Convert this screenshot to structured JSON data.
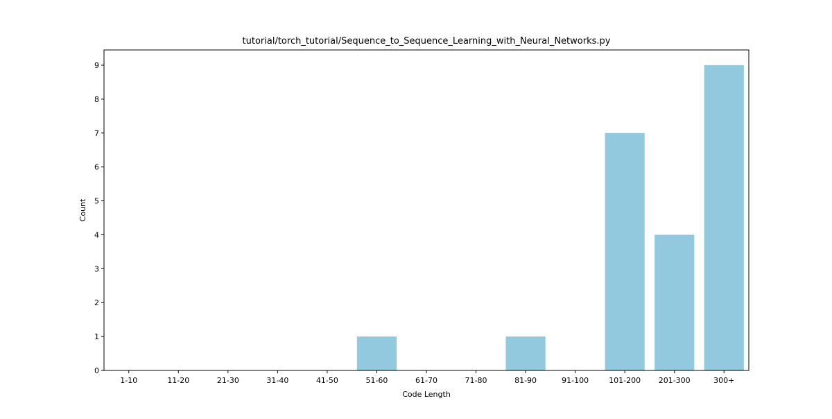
{
  "chart_data": {
    "type": "bar",
    "title": "tutorial/torch_tutorial/Sequence_to_Sequence_Learning_with_Neural_Networks.py",
    "xlabel": "Code Length",
    "ylabel": "Count",
    "categories": [
      "1-10",
      "11-20",
      "21-30",
      "31-40",
      "41-50",
      "51-60",
      "61-70",
      "71-80",
      "81-90",
      "91-100",
      "101-200",
      "201-300",
      "300+"
    ],
    "values": [
      0,
      0,
      0,
      0,
      0,
      1,
      0,
      0,
      1,
      0,
      7,
      4,
      9
    ],
    "ylim": [
      0,
      9.45
    ],
    "yticks": [
      0,
      1,
      2,
      3,
      4,
      5,
      6,
      7,
      8,
      9
    ],
    "grid": false,
    "legend": "none",
    "bar_color": "#92c9df"
  }
}
